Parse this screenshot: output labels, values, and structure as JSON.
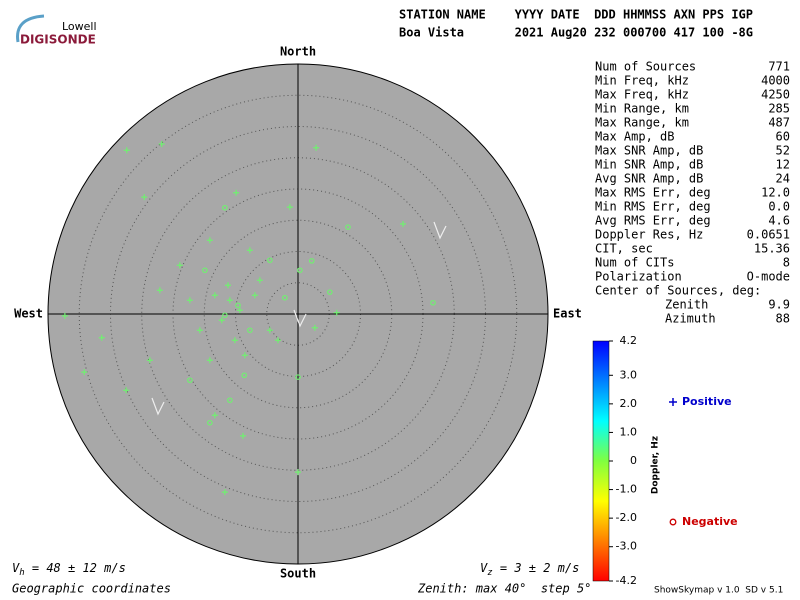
{
  "chart_data": {
    "type": "skymap",
    "logo": {
      "top": "Lowell",
      "bottom": "DIGISONDE"
    },
    "header": [
      "STATION NAME    YYYY DATE  DDD HHMMSS AXN PPS IGP",
      "Boa Vista       2021 Aug20 232 000700 417 100 -8G"
    ],
    "directions": {
      "north": "North",
      "south": "South",
      "west": "West",
      "east": "East"
    },
    "xlim": [
      -40,
      40
    ],
    "ylim": [
      -40,
      40
    ],
    "rings": [
      5,
      10,
      15,
      20,
      25,
      30,
      35
    ],
    "series": [
      {
        "name": "Positive",
        "marker": "plus",
        "color": "#70f070",
        "legend_color": "#0000cc",
        "x": [
          -27.4,
          -21.8,
          2.9,
          -24.6,
          -9.9,
          -1.3,
          16.8,
          -37.3,
          -31.4,
          -34.2,
          -27.5,
          -13.3,
          -8.8,
          0,
          -11.7,
          6.2,
          2.7,
          -18.9,
          -14.1,
          -7.7,
          -10.9,
          -9.3,
          -12.2,
          -6.1,
          -4.5,
          -15.7,
          -17.3,
          -10.1,
          -8.5,
          -14.1,
          -22.1,
          -23.7,
          -3.2,
          -6.9,
          -13.3,
          -11.2
        ],
        "values": [
          26.2,
          27.2,
          26.6,
          18.7,
          19.4,
          17.1,
          14.4,
          -0.3,
          -3.8,
          -9.3,
          -12.2,
          -16.2,
          -19.5,
          -25.3,
          -28.5,
          0.2,
          -2.2,
          7.8,
          11.8,
          10.2,
          2.2,
          0.6,
          -1,
          5.4,
          -2.6,
          -2.6,
          2.2,
          -4.2,
          -6.6,
          -7.4,
          3.8,
          -7.4,
          -4.2,
          3,
          3,
          4.6
        ]
      },
      {
        "name": "Negative",
        "marker": "circle",
        "color": "#70f070",
        "legend_color": "#cc0000",
        "x": [
          8,
          21.6,
          0,
          -11.7,
          2.2,
          5.1,
          -10.9,
          -14.1,
          -8.6,
          -14.9,
          -9.6,
          -11.7,
          -7.7,
          -2.1,
          -17.3,
          0.3,
          -4.5
        ],
        "values": [
          13.9,
          1.8,
          -10.1,
          17,
          8.5,
          3.5,
          -13.8,
          -17.4,
          -9.8,
          7,
          1.4,
          -0.2,
          -2.6,
          2.6,
          -10.6,
          7,
          8.6
        ]
      }
    ],
    "stats": [
      [
        "Num of Sources",
        "771"
      ],
      [
        "Min Freq, kHz",
        "4000"
      ],
      [
        "Max Freq, kHz",
        "4250"
      ],
      [
        "Min Range, km",
        "285"
      ],
      [
        "Max Range, km",
        "487"
      ],
      [
        "Max Amp, dB",
        "60"
      ],
      [
        "Max SNR Amp, dB",
        "52"
      ],
      [
        "Min SNR Amp, dB",
        "12"
      ],
      [
        "Avg SNR Amp, dB",
        "24"
      ],
      [
        "Max RMS Err, deg",
        "12.0"
      ],
      [
        "Min RMS Err, deg",
        "0.0"
      ],
      [
        "Avg RMS Err, deg",
        "4.6"
      ],
      [
        "Doppler Res, Hz",
        "0.0651"
      ],
      [
        "CIT, sec",
        "15.36"
      ],
      [
        "Num of CITs",
        "8"
      ],
      [
        "Polarization",
        "O-mode"
      ]
    ],
    "center_title": "Center of Sources, deg:",
    "center": [
      [
        "Zenith",
        "9.9"
      ],
      [
        "Azimuth",
        "88"
      ]
    ],
    "colorbar": {
      "label": "Doppler, Hz",
      "lim": [
        -4.2,
        4.2
      ],
      "colors": [
        "#ff0000",
        "#ff8000",
        "#ffff00",
        "#80ff40",
        "#00ffff",
        "#0080ff",
        "#0000ff"
      ],
      "ticks": [
        {
          "value": 4.2,
          "label": "4.2"
        },
        {
          "value": 3,
          "label": "3.0"
        },
        {
          "value": 2,
          "label": "2.0"
        },
        {
          "value": 1,
          "label": "1.0"
        },
        0,
        {
          "value": -1,
          "label": "-1.0"
        },
        {
          "value": -2,
          "label": "-2.0"
        },
        {
          "value": -3,
          "label": "-3.0"
        },
        {
          "value": -4.2,
          "label": "-4.2"
        }
      ]
    },
    "vh": {
      "symbol": "V",
      "sub": "h",
      "text": " = 48 ± 12 m/s"
    },
    "vz": {
      "symbol": "V",
      "sub": "z",
      "text": " = 3 ± 2 m/s"
    },
    "coordinates": "Geographic coordinates",
    "zenith_note": "Zenith: max 40°  step 5°",
    "version": "ShowSkymap v 1.0  SD v 5.1"
  }
}
